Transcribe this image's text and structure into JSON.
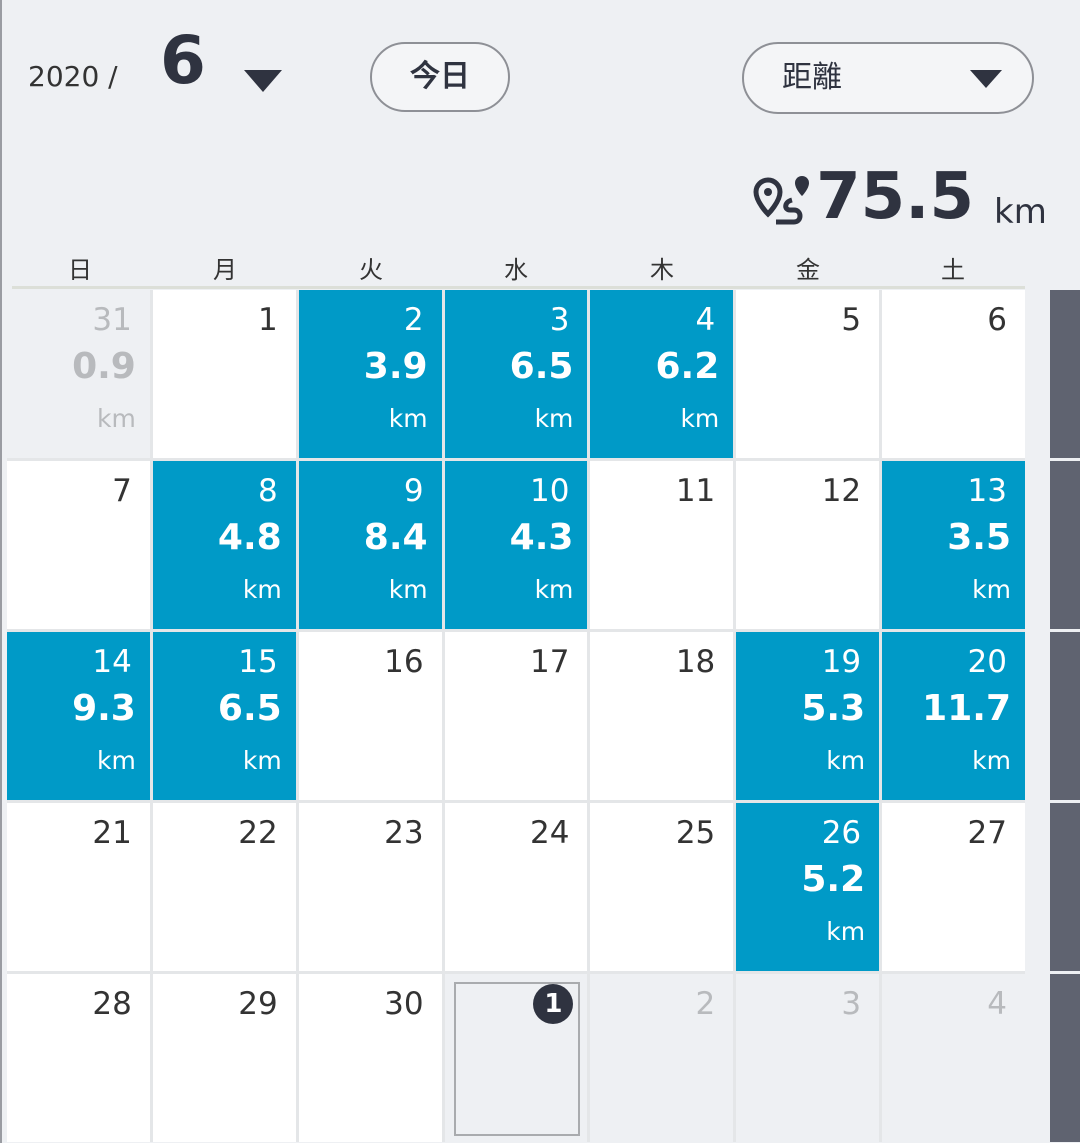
{
  "header": {
    "year": "2020 /",
    "month": 6,
    "today_button": "今日",
    "metric_dropdown": "距離"
  },
  "total": {
    "value": 75.5,
    "unit": "km"
  },
  "weekdays": [
    "日",
    "月",
    "火",
    "水",
    "木",
    "金",
    "土"
  ],
  "weeks": [
    [
      {
        "day": 31,
        "distance": 0.9,
        "unit": "km",
        "state": "other"
      },
      {
        "day": 1,
        "state": "plain"
      },
      {
        "day": 2,
        "distance": 3.9,
        "unit": "km",
        "state": "active"
      },
      {
        "day": 3,
        "distance": 6.5,
        "unit": "km",
        "state": "active"
      },
      {
        "day": 4,
        "distance": 6.2,
        "unit": "km",
        "state": "active"
      },
      {
        "day": 5,
        "state": "plain"
      },
      {
        "day": 6,
        "state": "plain"
      }
    ],
    [
      {
        "day": 7,
        "state": "plain"
      },
      {
        "day": 8,
        "distance": 4.8,
        "unit": "km",
        "state": "active"
      },
      {
        "day": 9,
        "distance": 8.4,
        "unit": "km",
        "state": "active"
      },
      {
        "day": 10,
        "distance": 4.3,
        "unit": "km",
        "state": "active"
      },
      {
        "day": 11,
        "state": "plain"
      },
      {
        "day": 12,
        "state": "plain"
      },
      {
        "day": 13,
        "distance": 3.5,
        "unit": "km",
        "state": "active"
      }
    ],
    [
      {
        "day": 14,
        "distance": 9.3,
        "unit": "km",
        "state": "active"
      },
      {
        "day": 15,
        "distance": 6.5,
        "unit": "km",
        "state": "active"
      },
      {
        "day": 16,
        "state": "plain"
      },
      {
        "day": 17,
        "state": "plain"
      },
      {
        "day": 18,
        "state": "plain"
      },
      {
        "day": 19,
        "distance": 5.3,
        "unit": "km",
        "state": "active"
      },
      {
        "day": 20,
        "distance": 11.7,
        "unit": "km",
        "state": "active"
      }
    ],
    [
      {
        "day": 21,
        "state": "plain"
      },
      {
        "day": 22,
        "state": "plain"
      },
      {
        "day": 23,
        "state": "plain"
      },
      {
        "day": 24,
        "state": "plain"
      },
      {
        "day": 25,
        "state": "plain"
      },
      {
        "day": 26,
        "distance": 5.2,
        "unit": "km",
        "state": "active"
      },
      {
        "day": 27,
        "state": "plain"
      }
    ],
    [
      {
        "day": 28,
        "state": "plain"
      },
      {
        "day": 29,
        "state": "plain"
      },
      {
        "day": 30,
        "state": "plain"
      },
      {
        "day": 1,
        "state": "today"
      },
      {
        "day": 2,
        "state": "other"
      },
      {
        "day": 3,
        "state": "other"
      },
      {
        "day": 4,
        "state": "other"
      }
    ]
  ]
}
